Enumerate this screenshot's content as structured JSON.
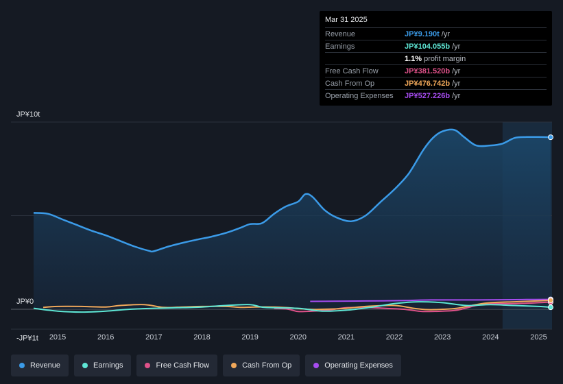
{
  "tooltip": {
    "date": "Mar 31 2025",
    "rows": [
      {
        "label": "Revenue",
        "value": "JP¥9.190t",
        "unit": "/yr",
        "color": "#3b9be8"
      },
      {
        "label": "Earnings",
        "value": "JP¥104.055b",
        "unit": "/yr",
        "color": "#5ee6d5"
      },
      {
        "label": "",
        "value": "1.1%",
        "unit": "profit margin",
        "color": "#ffffff"
      },
      {
        "label": "Free Cash Flow",
        "value": "JP¥381.520b",
        "unit": "/yr",
        "color": "#e0528a"
      },
      {
        "label": "Cash From Op",
        "value": "JP¥476.742b",
        "unit": "/yr",
        "color": "#f0a85a"
      },
      {
        "label": "Operating Expenses",
        "value": "JP¥527.226b",
        "unit": "/yr",
        "color": "#a64cf0"
      }
    ]
  },
  "legend": [
    {
      "label": "Revenue",
      "color": "#3b9be8"
    },
    {
      "label": "Earnings",
      "color": "#5ee6d5"
    },
    {
      "label": "Free Cash Flow",
      "color": "#e0528a"
    },
    {
      "label": "Cash From Op",
      "color": "#f0a85a"
    },
    {
      "label": "Operating Expenses",
      "color": "#a64cf0"
    }
  ],
  "chart_data": {
    "type": "area",
    "y_axis_labels": [
      "JP¥10t",
      "JP¥0",
      "-JP¥1t"
    ],
    "y_axis_values": [
      10,
      0,
      -1
    ],
    "ylim": [
      -1,
      10
    ],
    "xlim": [
      2014.5,
      2025.25
    ],
    "x_ticks": [
      "2015",
      "2016",
      "2017",
      "2018",
      "2019",
      "2020",
      "2021",
      "2022",
      "2023",
      "2024",
      "2025"
    ],
    "x_tick_values": [
      2015,
      2016,
      2017,
      2018,
      2019,
      2020,
      2021,
      2022,
      2023,
      2024,
      2025
    ],
    "forecast_start": 2024.25,
    "grid": true,
    "legend_placement": "bottom",
    "series": [
      {
        "name": "Revenue",
        "color": "#3b9be8",
        "x": [
          2014.5,
          2014.8,
          2015.1,
          2015.4,
          2015.7,
          2016.0,
          2016.3,
          2016.6,
          2016.9,
          2017.0,
          2017.3,
          2017.6,
          2017.9,
          2018.2,
          2018.5,
          2018.8,
          2019.0,
          2019.25,
          2019.5,
          2019.75,
          2020.0,
          2020.15,
          2020.3,
          2020.55,
          2020.8,
          2021.1,
          2021.4,
          2021.7,
          2022.0,
          2022.3,
          2022.6,
          2022.8,
          2023.0,
          2023.25,
          2023.45,
          2023.7,
          2024.0,
          2024.25,
          2024.5,
          2024.75,
          2025.0,
          2025.25
        ],
        "y": [
          5.15,
          5.1,
          4.8,
          4.5,
          4.2,
          3.95,
          3.65,
          3.35,
          3.12,
          3.1,
          3.35,
          3.55,
          3.72,
          3.88,
          4.08,
          4.35,
          4.55,
          4.6,
          5.1,
          5.5,
          5.75,
          6.15,
          6.0,
          5.3,
          4.9,
          4.7,
          5.0,
          5.7,
          6.4,
          7.25,
          8.5,
          9.15,
          9.5,
          9.58,
          9.2,
          8.75,
          8.75,
          8.85,
          9.15,
          9.2,
          9.2,
          9.19
        ]
      },
      {
        "name": "Earnings",
        "color": "#5ee6d5",
        "x": [
          2014.5,
          2015.0,
          2015.5,
          2016.0,
          2016.5,
          2017.0,
          2017.5,
          2018.0,
          2018.5,
          2019.0,
          2019.3,
          2020.0,
          2020.5,
          2021.0,
          2021.5,
          2022.0,
          2022.5,
          2023.0,
          2023.5,
          2024.0,
          2024.5,
          2025.0,
          2025.25
        ],
        "y": [
          0.05,
          -0.1,
          -0.15,
          -0.1,
          0.0,
          0.05,
          0.08,
          0.12,
          0.2,
          0.25,
          0.1,
          0.05,
          -0.1,
          -0.05,
          0.1,
          0.3,
          0.4,
          0.35,
          0.2,
          0.25,
          0.2,
          0.15,
          0.104
        ]
      },
      {
        "name": "Free Cash Flow",
        "color": "#e0528a",
        "x": [
          2019.5,
          2019.8,
          2020.0,
          2020.3,
          2020.6,
          2021.0,
          2021.4,
          2021.8,
          2022.2,
          2022.5,
          2022.7,
          2023.0,
          2023.3,
          2023.7,
          2024.0,
          2024.5,
          2025.0,
          2025.25
        ],
        "y": [
          0.05,
          0.0,
          -0.12,
          -0.1,
          -0.05,
          0.08,
          0.1,
          0.05,
          0.0,
          -0.1,
          -0.12,
          -0.1,
          -0.05,
          0.2,
          0.3,
          0.3,
          0.35,
          0.3815
        ]
      },
      {
        "name": "Cash From Op",
        "color": "#f0a85a",
        "x": [
          2014.7,
          2015.0,
          2015.5,
          2016.0,
          2016.3,
          2016.8,
          2017.2,
          2017.6,
          2018.0,
          2018.5,
          2018.8,
          2019.1,
          2019.5,
          2019.8,
          2020.2,
          2020.5,
          2021.0,
          2021.4,
          2022.0,
          2022.4,
          2022.7,
          2023.0,
          2023.3,
          2023.7,
          2024.0,
          2024.5,
          2025.0,
          2025.25
        ],
        "y": [
          0.1,
          0.15,
          0.15,
          0.12,
          0.2,
          0.25,
          0.1,
          0.12,
          0.15,
          0.15,
          0.1,
          0.12,
          0.12,
          0.08,
          0.0,
          0.0,
          0.05,
          0.15,
          0.2,
          0.05,
          -0.02,
          0.0,
          0.05,
          0.25,
          0.35,
          0.4,
          0.45,
          0.4767
        ]
      },
      {
        "name": "Operating Expenses",
        "color": "#a64cf0",
        "x": [
          2020.25,
          2020.75,
          2021.25,
          2021.75,
          2022.25,
          2022.75,
          2023.25,
          2023.75,
          2024.25,
          2024.75,
          2025.25
        ],
        "y": [
          0.42,
          0.43,
          0.44,
          0.45,
          0.47,
          0.5,
          0.5,
          0.5,
          0.51,
          0.52,
          0.527
        ]
      }
    ]
  }
}
